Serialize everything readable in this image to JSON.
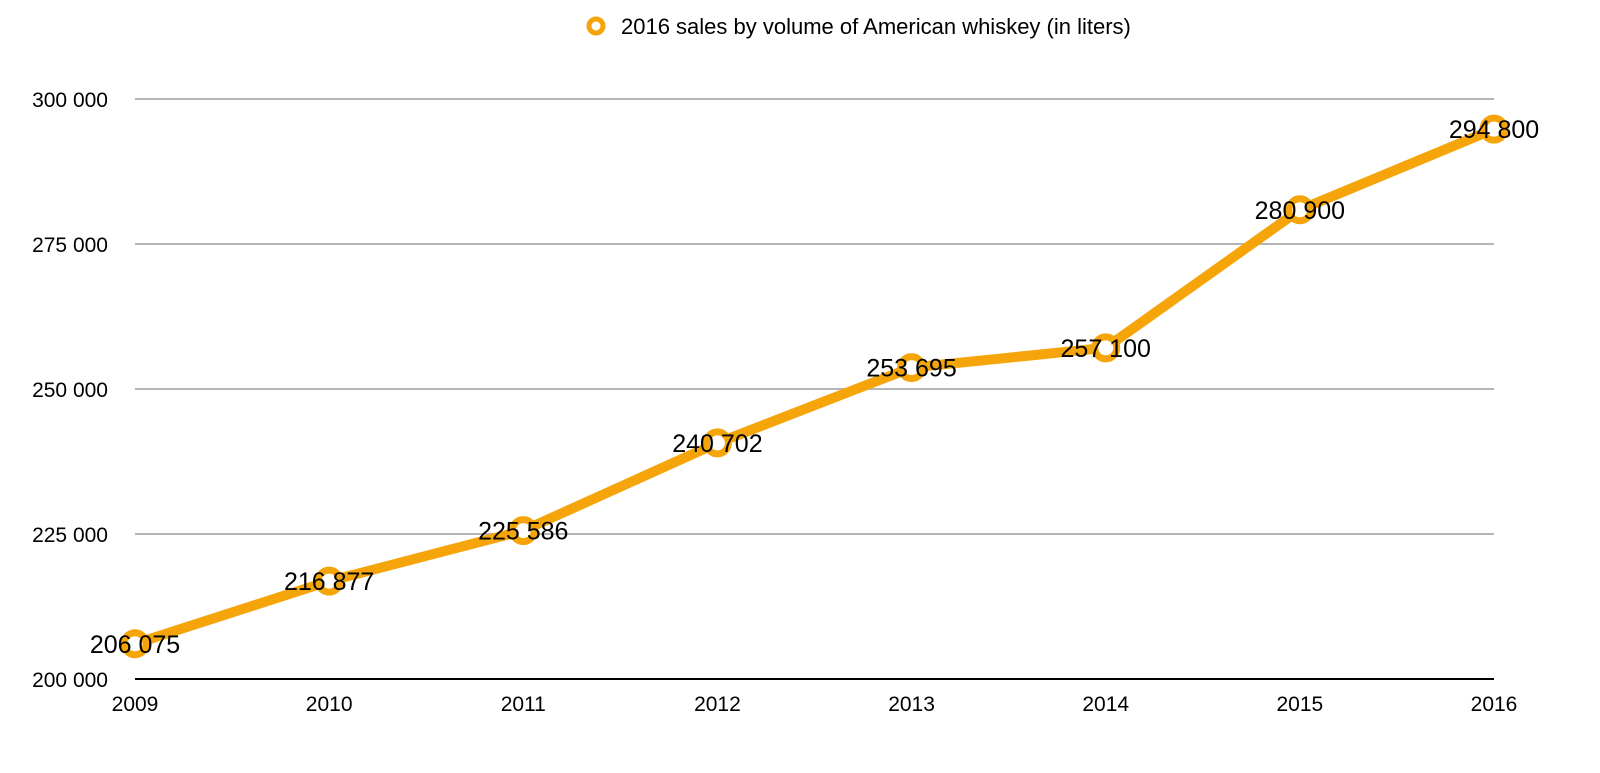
{
  "chart_data": {
    "type": "line",
    "title": "",
    "xlabel": "",
    "ylabel": "",
    "categories": [
      "2009",
      "2010",
      "2011",
      "2012",
      "2013",
      "2014",
      "2015",
      "2016"
    ],
    "series": [
      {
        "name": "2016 sales by volume of American whiskey (in liters)",
        "values": [
          206075,
          216877,
          225586,
          240702,
          253695,
          257100,
          280900,
          294800
        ],
        "labels": [
          "206 075",
          "216 877",
          "225 586",
          "240 702",
          "253 695",
          "257 100",
          "280 900",
          "294 800"
        ],
        "color": "#F5A50A"
      }
    ],
    "ylim": [
      200000,
      300000
    ],
    "yticks": [
      200000,
      225000,
      250000,
      275000,
      300000
    ],
    "ytick_labels": [
      "200 000",
      "225 000",
      "250 000",
      "275 000",
      "300 000"
    ],
    "grid": true,
    "legend_position": "top-center",
    "colors": {
      "series": "#F5A50A",
      "grid": "#b5b5b5",
      "axis": "#000000",
      "marker_fill": "#ffffff"
    }
  }
}
